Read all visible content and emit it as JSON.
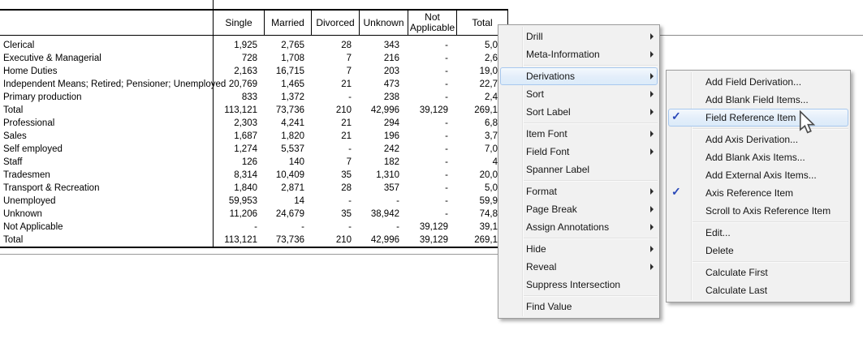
{
  "table": {
    "columns": [
      "Single",
      "Married",
      "Divorced",
      "Unknown",
      "Not Applicable",
      "Total"
    ],
    "rows": [
      {
        "label": "Clerical",
        "values": [
          "1,925",
          "2,765",
          "28",
          "343",
          "-",
          "5,0"
        ]
      },
      {
        "label": "Executive & Managerial",
        "values": [
          "728",
          "1,708",
          "7",
          "216",
          "-",
          "2,6"
        ]
      },
      {
        "label": "Home Duties",
        "values": [
          "2,163",
          "16,715",
          "7",
          "203",
          "-",
          "19,0"
        ]
      },
      {
        "label": "Independent Means; Retired; Pensioner; Unemployed",
        "values": [
          "20,769",
          "1,465",
          "21",
          "473",
          "-",
          "22,7"
        ]
      },
      {
        "label": "Primary production",
        "values": [
          "833",
          "1,372",
          "-",
          "238",
          "-",
          "2,4"
        ]
      },
      {
        "label": "Total",
        "values": [
          "113,121",
          "73,736",
          "210",
          "42,996",
          "39,129",
          "269,1"
        ]
      },
      {
        "label": "Professional",
        "values": [
          "2,303",
          "4,241",
          "21",
          "294",
          "-",
          "6,8"
        ]
      },
      {
        "label": "Sales",
        "values": [
          "1,687",
          "1,820",
          "21",
          "196",
          "-",
          "3,7"
        ]
      },
      {
        "label": "Self employed",
        "values": [
          "1,274",
          "5,537",
          "-",
          "242",
          "-",
          "7,0"
        ]
      },
      {
        "label": "Staff",
        "values": [
          "126",
          "140",
          "7",
          "182",
          "-",
          "4"
        ]
      },
      {
        "label": "Tradesmen",
        "values": [
          "8,314",
          "10,409",
          "35",
          "1,310",
          "-",
          "20,0"
        ]
      },
      {
        "label": "Transport & Recreation",
        "values": [
          "1,840",
          "2,871",
          "28",
          "357",
          "-",
          "5,0"
        ]
      },
      {
        "label": "Unemployed",
        "values": [
          "59,953",
          "14",
          "-",
          "-",
          "-",
          "59,9"
        ]
      },
      {
        "label": "Unknown",
        "values": [
          "11,206",
          "24,679",
          "35",
          "38,942",
          "-",
          "74,8"
        ]
      },
      {
        "label": "Not Applicable",
        "values": [
          "-",
          "-",
          "-",
          "-",
          "39,129",
          "39,1"
        ]
      },
      {
        "label": "Total",
        "values": [
          "113,121",
          "73,736",
          "210",
          "42,996",
          "39,129",
          "269,1"
        ]
      }
    ]
  },
  "context_menu": {
    "items": [
      {
        "label": "Drill",
        "has_submenu": true
      },
      {
        "label": "Meta-Information",
        "has_submenu": true
      },
      {
        "type": "separator"
      },
      {
        "label": "Derivations",
        "has_submenu": true,
        "highlighted": true
      },
      {
        "label": "Sort",
        "has_submenu": true
      },
      {
        "label": "Sort Label",
        "has_submenu": true
      },
      {
        "type": "separator"
      },
      {
        "label": "Item Font",
        "has_submenu": true
      },
      {
        "label": "Field Font",
        "has_submenu": true
      },
      {
        "label": "Spanner Label"
      },
      {
        "type": "separator"
      },
      {
        "label": "Format",
        "has_submenu": true
      },
      {
        "label": "Page Break",
        "has_submenu": true
      },
      {
        "label": "Assign Annotations",
        "has_submenu": true
      },
      {
        "type": "separator"
      },
      {
        "label": "Hide",
        "has_submenu": true
      },
      {
        "label": "Reveal",
        "has_submenu": true
      },
      {
        "label": "Suppress Intersection"
      },
      {
        "type": "separator"
      },
      {
        "label": "Find Value"
      }
    ]
  },
  "derivations_submenu": {
    "items": [
      {
        "label": "Add Field Derivation..."
      },
      {
        "label": "Add Blank Field Items..."
      },
      {
        "label": "Field Reference Item",
        "checked": true,
        "highlighted": true
      },
      {
        "type": "separator"
      },
      {
        "label": "Add Axis Derivation..."
      },
      {
        "label": "Add Blank Axis Items..."
      },
      {
        "label": "Add External Axis Items..."
      },
      {
        "label": "Axis Reference Item",
        "checked": true
      },
      {
        "label": "Scroll to Axis Reference Item"
      },
      {
        "type": "separator"
      },
      {
        "label": "Edit..."
      },
      {
        "label": "Delete"
      },
      {
        "type": "separator"
      },
      {
        "label": "Calculate First"
      },
      {
        "label": "Calculate Last"
      }
    ]
  },
  "colors": {
    "menu_bg": "#f1f1f1",
    "menu_border": "#9b9b9b",
    "highlight_border": "#a8c8ee",
    "highlight_fill": "#e3eefa",
    "check_color": "#2847b8",
    "table_line": "#000000",
    "outer_rule_gray": "#8a8a8a"
  }
}
